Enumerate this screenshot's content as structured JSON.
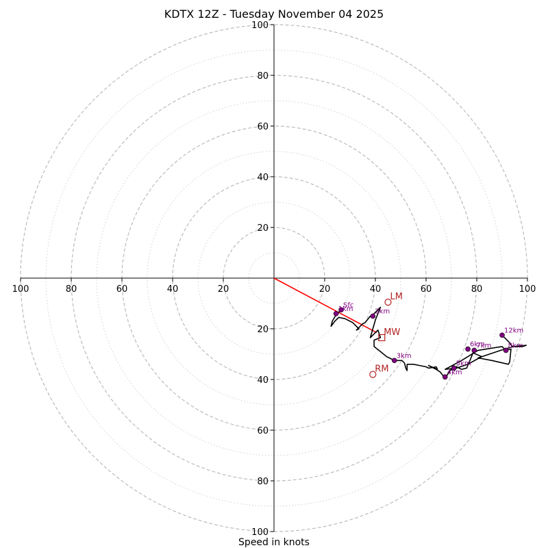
{
  "chart_data": {
    "type": "hodograph",
    "title": "KDTX 12Z - Tuesday November 04 2025",
    "xlabel": "Speed in knots",
    "units": "knots",
    "xlim": [
      -100,
      100
    ],
    "ylim": [
      -100,
      100
    ],
    "major_rings": [
      20,
      40,
      60,
      80,
      100
    ],
    "minor_rings": [
      10,
      30,
      50,
      70,
      90
    ],
    "tick_values": [
      20,
      40,
      60,
      80,
      100
    ],
    "x_tick_labels": [
      "100",
      "80",
      "60",
      "40",
      "20",
      "20",
      "40",
      "60",
      "80",
      "100"
    ],
    "y_tick_labels": [
      "100",
      "80",
      "60",
      "40",
      "20",
      "20",
      "40",
      "60",
      "80",
      "100"
    ],
    "colors": {
      "trace": "#000000",
      "height_marker": "#800080",
      "storm_motion": "#b22222",
      "mean_wind_vector": "#ff0000",
      "grid": "#bbbbbb"
    },
    "trace": [
      [
        26.5,
        -12.5
      ],
      [
        25,
        -14
      ],
      [
        24.5,
        -14.5
      ],
      [
        23,
        -17
      ],
      [
        22.5,
        -19
      ],
      [
        24,
        -17
      ],
      [
        25.5,
        -15.5
      ],
      [
        28,
        -16
      ],
      [
        31,
        -17.5
      ],
      [
        33.5,
        -20
      ],
      [
        32.5,
        -20.5
      ],
      [
        35,
        -18
      ],
      [
        36,
        -17.5
      ],
      [
        38,
        -15
      ],
      [
        39,
        -14.5
      ],
      [
        40.5,
        -13
      ],
      [
        42,
        -11.5
      ],
      [
        40,
        -16.5
      ],
      [
        39,
        -20
      ],
      [
        38,
        -23.5
      ],
      [
        39.5,
        -22
      ],
      [
        40,
        -21.5
      ],
      [
        41,
        -20.5
      ],
      [
        42,
        -23.5
      ],
      [
        39.5,
        -24.5
      ],
      [
        39.5,
        -27
      ],
      [
        42,
        -29
      ],
      [
        44.5,
        -31
      ],
      [
        46.5,
        -32
      ],
      [
        47.5,
        -32.5
      ],
      [
        50.5,
        -32.5
      ],
      [
        51.5,
        -33.5
      ],
      [
        52,
        -35.5
      ],
      [
        52.5,
        -36.5
      ],
      [
        52.5,
        -34
      ],
      [
        55,
        -34
      ],
      [
        57.5,
        -34.5
      ],
      [
        60,
        -35
      ],
      [
        61,
        -35.5
      ],
      [
        64,
        -35
      ],
      [
        64.5,
        -36
      ],
      [
        61,
        -34.5
      ],
      [
        64,
        -36
      ],
      [
        65.5,
        -37
      ],
      [
        67.5,
        -39.5
      ],
      [
        69.5,
        -36.5
      ],
      [
        71,
        -35.5
      ],
      [
        72,
        -35
      ],
      [
        74,
        -36
      ],
      [
        76,
        -35.5
      ],
      [
        77.5,
        -32
      ],
      [
        78.5,
        -29.5
      ],
      [
        82,
        -31
      ],
      [
        81,
        -31.5
      ],
      [
        76.5,
        -34
      ],
      [
        72,
        -35.5
      ],
      [
        67.5,
        -36
      ],
      [
        74,
        -32.5
      ],
      [
        80.5,
        -28.5
      ],
      [
        90,
        -27
      ],
      [
        91.5,
        -28.5
      ],
      [
        93.5,
        -28
      ],
      [
        93,
        -33
      ],
      [
        92.5,
        -34
      ],
      [
        86,
        -32.5
      ],
      [
        80.5,
        -31.5
      ],
      [
        89.5,
        -28.5
      ],
      [
        94.5,
        -27
      ],
      [
        98,
        -27
      ],
      [
        99.5,
        -26.5
      ],
      [
        94,
        -27
      ],
      [
        93,
        -25.5
      ],
      [
        90,
        -22.5
      ]
    ],
    "height_markers": [
      {
        "label": "Sfc",
        "u": 26.5,
        "v": -12.5
      },
      {
        "label": "1km",
        "u": 24.5,
        "v": -14
      },
      {
        "label": "2km",
        "u": 39,
        "v": -15
      },
      {
        "label": "3km",
        "u": 47.5,
        "v": -32.5
      },
      {
        "label": "4km",
        "u": 67.5,
        "v": -39
      },
      {
        "label": "5km",
        "u": 71,
        "v": -35.5
      },
      {
        "label": "6km",
        "u": 76.5,
        "v": -28
      },
      {
        "label": "7km",
        "u": 79,
        "v": -28.5
      },
      {
        "label": "8km",
        "u": 91.5,
        "v": -28.5
      },
      {
        "label": "12km",
        "u": 90,
        "v": -22.5
      }
    ],
    "storm_motions": [
      {
        "label": "LM",
        "u": 45,
        "v": -9.5,
        "marker": "circle"
      },
      {
        "label": "MW",
        "u": 42.5,
        "v": -23.5,
        "marker": "square"
      },
      {
        "label": "RM",
        "u": 39,
        "v": -38,
        "marker": "circle"
      }
    ],
    "mean_wind_vector": {
      "from": [
        0,
        0
      ],
      "to": [
        40.5,
        -21.5
      ]
    }
  }
}
